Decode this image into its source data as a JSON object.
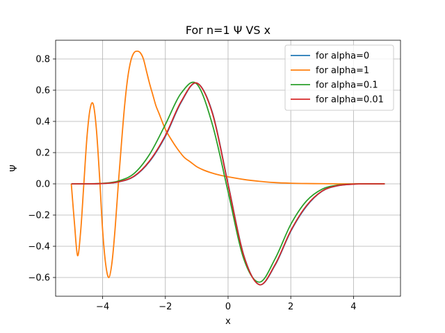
{
  "chart_data": {
    "type": "line",
    "title": "For n=1 Ψ VS x",
    "xlabel": "x",
    "ylabel": "Ψ",
    "xlim": [
      -5.5,
      5.5
    ],
    "ylim": [
      -0.72,
      0.92
    ],
    "xticks": [
      -4,
      -2,
      0,
      2,
      4
    ],
    "xtick_labels": [
      "−4",
      "−2",
      "0",
      "2",
      "4"
    ],
    "yticks": [
      -0.6,
      -0.4,
      -0.2,
      0.0,
      0.2,
      0.4,
      0.6,
      0.8
    ],
    "ytick_labels": [
      "−0.6",
      "−0.4",
      "−0.2",
      "0.0",
      "0.2",
      "0.4",
      "0.6",
      "0.8"
    ],
    "grid": true,
    "legend_position": "top-right",
    "series": [
      {
        "name": "for alpha=0",
        "color": "#1f77b4",
        "x": [
          -5.0,
          -4.5,
          -4.0,
          -3.5,
          -3.0,
          -2.5,
          -2.0,
          -1.5,
          -1.0,
          -0.5,
          0.0,
          0.5,
          1.0,
          1.5,
          2.0,
          2.5,
          3.0,
          3.5,
          4.0,
          4.5,
          5.0
        ],
        "y": [
          0.0,
          0.0,
          0.002,
          0.012,
          0.047,
          0.144,
          0.304,
          0.521,
          0.646,
          0.457,
          0.0,
          -0.457,
          -0.646,
          -0.521,
          -0.304,
          -0.144,
          -0.047,
          -0.012,
          -0.002,
          0.0,
          0.0
        ]
      },
      {
        "name": "for alpha=1",
        "color": "#ff7f0e",
        "x": [
          -5.0,
          -4.9,
          -4.8,
          -4.7,
          -4.6,
          -4.5,
          -4.4,
          -4.3,
          -4.2,
          -4.1,
          -4.0,
          -3.9,
          -3.8,
          -3.7,
          -3.6,
          -3.5,
          -3.4,
          -3.3,
          -3.2,
          -3.1,
          -3.0,
          -2.9,
          -2.8,
          -2.7,
          -2.6,
          -2.5,
          -2.4,
          -2.3,
          -2.2,
          -2.0,
          -1.8,
          -1.6,
          -1.4,
          -1.2,
          -1.0,
          -0.8,
          -0.6,
          -0.4,
          -0.2,
          0.0,
          0.5,
          1.0,
          1.5,
          2.0,
          2.5,
          3.0,
          3.5,
          4.0,
          4.5,
          5.0
        ],
        "y": [
          0.0,
          -0.25,
          -0.46,
          -0.3,
          0.0,
          0.3,
          0.48,
          0.51,
          0.35,
          0.05,
          -0.3,
          -0.52,
          -0.6,
          -0.5,
          -0.28,
          0.0,
          0.26,
          0.5,
          0.68,
          0.79,
          0.84,
          0.85,
          0.84,
          0.8,
          0.72,
          0.64,
          0.57,
          0.5,
          0.45,
          0.35,
          0.28,
          0.22,
          0.17,
          0.14,
          0.11,
          0.09,
          0.075,
          0.063,
          0.053,
          0.045,
          0.028,
          0.016,
          0.008,
          0.004,
          0.002,
          0.001,
          0.0,
          0.0,
          0.0,
          0.0
        ]
      },
      {
        "name": "for alpha=0.1",
        "color": "#2ca02c",
        "x": [
          -5.0,
          -4.5,
          -4.0,
          -3.5,
          -3.0,
          -2.5,
          -2.0,
          -1.5,
          -1.0,
          -0.5,
          0.0,
          0.5,
          1.0,
          1.5,
          2.0,
          2.5,
          3.0,
          3.5,
          4.0,
          4.5,
          5.0
        ],
        "y": [
          0.0,
          0.0,
          0.003,
          0.018,
          0.066,
          0.19,
          0.38,
          0.58,
          0.64,
          0.38,
          -0.05,
          -0.48,
          -0.63,
          -0.48,
          -0.26,
          -0.11,
          -0.034,
          -0.008,
          -0.001,
          0.0,
          0.0
        ]
      },
      {
        "name": "for alpha=0.01",
        "color": "#d62728",
        "x": [
          -5.0,
          -4.5,
          -4.0,
          -3.5,
          -3.0,
          -2.5,
          -2.0,
          -1.5,
          -1.0,
          -0.5,
          0.0,
          0.5,
          1.0,
          1.5,
          2.0,
          2.5,
          3.0,
          3.5,
          4.0,
          4.5,
          5.0
        ],
        "y": [
          0.0,
          0.0,
          0.002,
          0.013,
          0.049,
          0.148,
          0.31,
          0.526,
          0.646,
          0.452,
          -0.005,
          -0.46,
          -0.646,
          -0.517,
          -0.3,
          -0.14,
          -0.046,
          -0.011,
          -0.002,
          0.0,
          0.0
        ]
      }
    ]
  }
}
